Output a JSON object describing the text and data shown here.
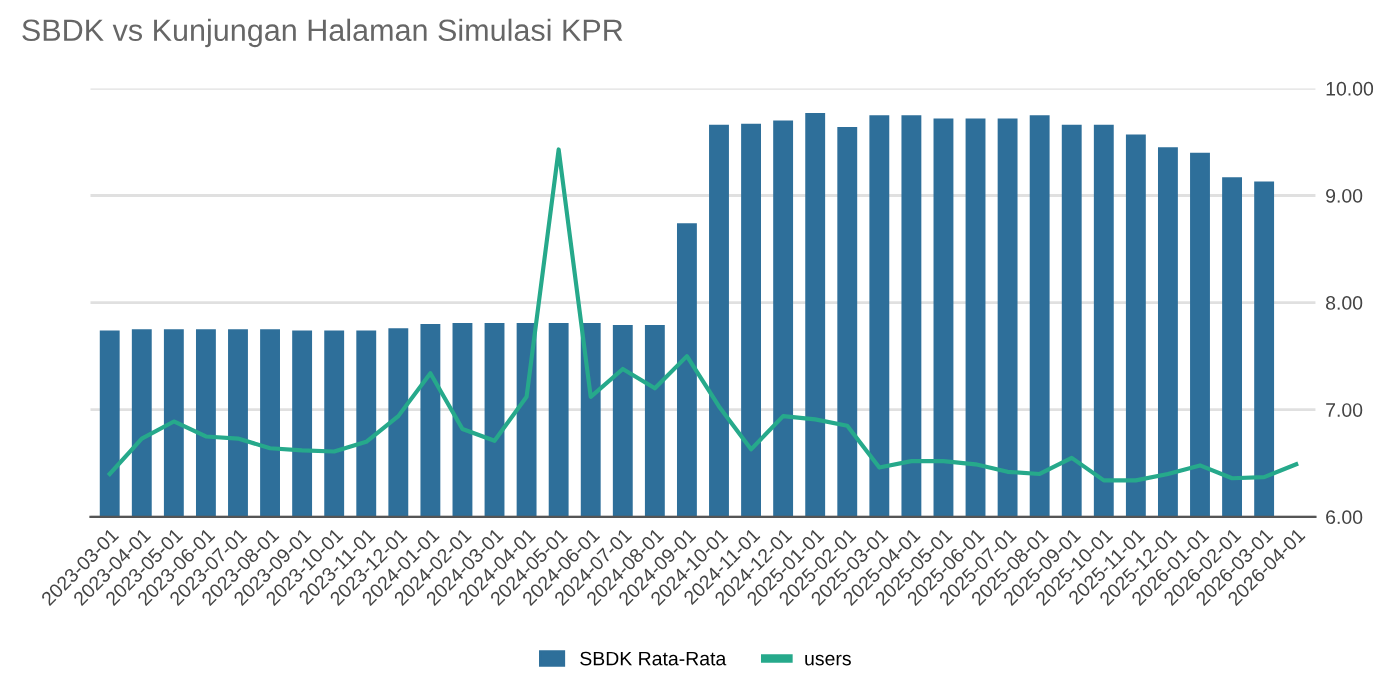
{
  "chart_data": {
    "type": "bar",
    "title": "SBDK vs Kunjungan Halaman Simulasi KPR",
    "categories": [
      "2023-03-01",
      "2023-04-01",
      "2023-05-01",
      "2023-06-01",
      "2023-07-01",
      "2023-08-01",
      "2023-09-01",
      "2023-10-01",
      "2023-11-01",
      "2023-12-01",
      "2024-01-01",
      "2024-02-01",
      "2024-03-01",
      "2024-04-01",
      "2024-05-01",
      "2024-06-01",
      "2024-07-01",
      "2024-08-01",
      "2024-09-01",
      "2024-10-01",
      "2024-11-01",
      "2024-12-01",
      "2025-01-01",
      "2025-02-01",
      "2025-03-01",
      "2025-04-01",
      "2025-05-01",
      "2025-06-01",
      "2025-07-01",
      "2025-08-01",
      "2025-09-01",
      "2025-10-01",
      "2025-11-01",
      "2025-12-01",
      "2026-01-01",
      "2026-02-01",
      "2026-03-01",
      "2026-04-01"
    ],
    "series": [
      {
        "name": "SBDK Rata-Rata",
        "color": "#2e6f9a",
        "values": [
          7.74,
          7.75,
          7.75,
          7.75,
          7.75,
          7.75,
          7.74,
          7.74,
          7.74,
          7.76,
          7.8,
          7.81,
          7.81,
          7.81,
          7.81,
          7.81,
          7.79,
          7.79,
          8.74,
          9.66,
          9.67,
          9.7,
          9.77,
          9.64,
          9.75,
          9.75,
          9.72,
          9.72,
          9.72,
          9.75,
          9.66,
          9.66,
          9.57,
          9.45,
          9.4,
          9.17,
          9.13,
          null
        ]
      },
      {
        "name": "users",
        "type": "line",
        "color": "#26a98b",
        "values": [
          6.4,
          6.73,
          6.89,
          6.75,
          6.73,
          6.64,
          6.62,
          6.61,
          6.7,
          6.94,
          7.34,
          6.82,
          6.71,
          7.12,
          9.43,
          7.12,
          7.38,
          7.2,
          7.5,
          7.03,
          6.63,
          6.94,
          6.91,
          6.85,
          6.46,
          6.52,
          6.52,
          6.49,
          6.42,
          6.4,
          6.55,
          6.34,
          6.34,
          6.4,
          6.48,
          6.36,
          6.37,
          6.49
        ]
      }
    ],
    "ylim": [
      6,
      10
    ],
    "yticks": [
      {
        "value": 6,
        "label": "6.00"
      },
      {
        "value": 7,
        "label": "7.00"
      },
      {
        "value": 8,
        "label": "8.00"
      },
      {
        "value": 9,
        "label": "9.00"
      },
      {
        "value": 10,
        "label": "10.00"
      }
    ],
    "grid": "y",
    "legend": "bottom",
    "marker": "none"
  }
}
